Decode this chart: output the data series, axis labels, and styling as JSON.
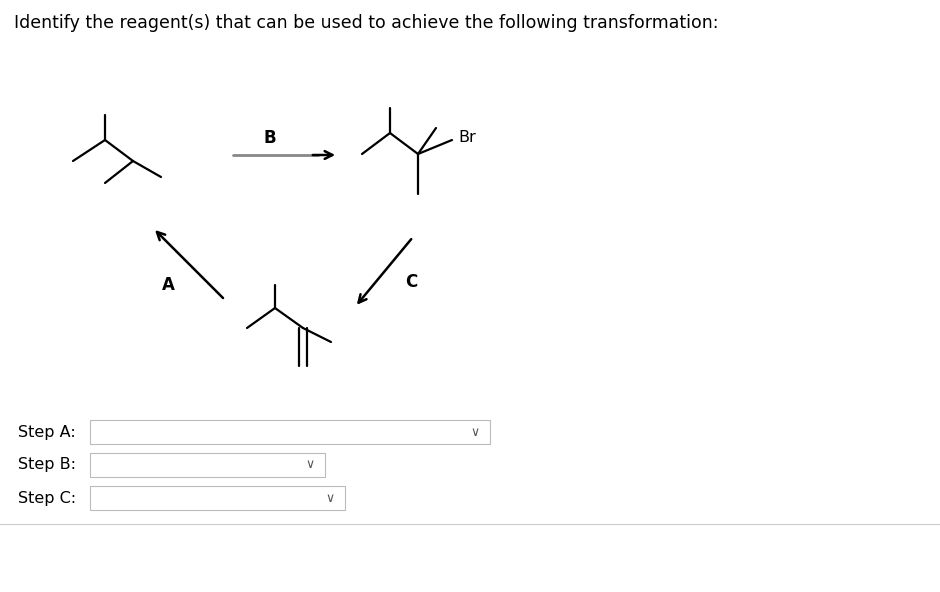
{
  "title": "Identify the reagent(s) that can be used to achieve the following transformation:",
  "title_fontsize": 12.5,
  "bg_color": "#ffffff",
  "text_color": "#000000",
  "step_labels": [
    "Step A:",
    "Step B:",
    "Step C:"
  ],
  "arrow_B_label": "B",
  "arrow_A_label": "A",
  "arrow_C_label": "C",
  "Br_label": "Br",
  "line_color": "#000000",
  "gray_color": "#888888",
  "box_border_color": "#bbbbbb",
  "chevron_color": "#555555"
}
